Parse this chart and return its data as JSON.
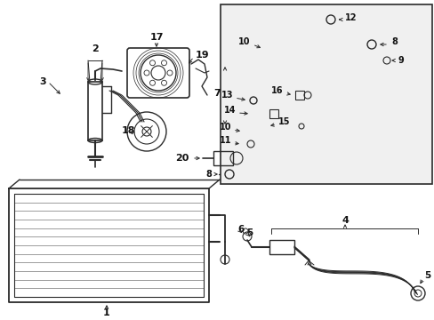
{
  "bg_color": "#ffffff",
  "line_color": "#2a2a2a",
  "text_color": "#111111",
  "box_bg": "#efefef",
  "fig_w": 4.89,
  "fig_h": 3.6,
  "dpi": 100
}
